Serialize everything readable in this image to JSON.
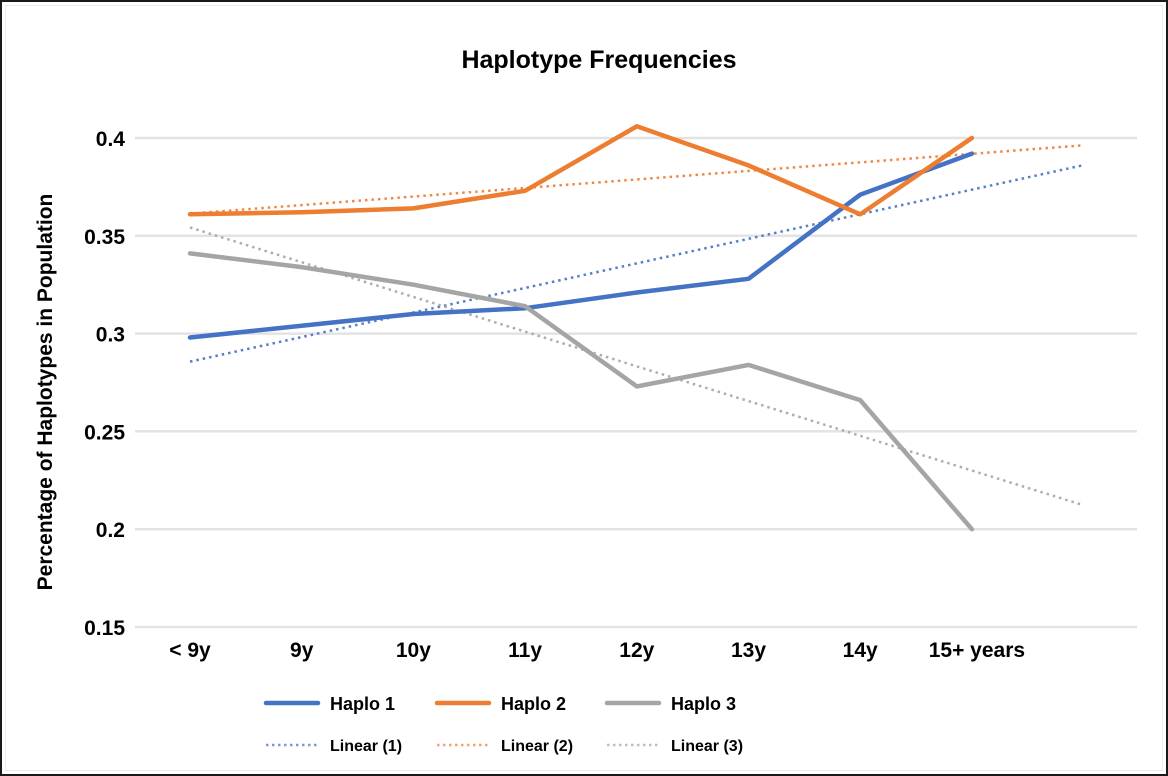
{
  "chart_data": {
    "type": "line",
    "title": "Haplotype Frequencies",
    "xlabel": "",
    "ylabel": "Percentage of Haplotypes in Population",
    "categories": [
      "< 9y",
      "9y",
      "10y",
      "11y",
      "12y",
      "13y",
      "14y",
      "15+ years"
    ],
    "ylim": [
      0.15,
      0.4
    ],
    "yticks": [
      "0.15",
      "0.2",
      "0.25",
      "0.3",
      "0.35",
      "0.4"
    ],
    "ytick_values": [
      0.15,
      0.2,
      0.25,
      0.3,
      0.35,
      0.4
    ],
    "grid": true,
    "legend_position": "bottom",
    "series": [
      {
        "name": "Haplo 1",
        "color": "#4472C4",
        "values": [
          0.298,
          0.304,
          0.31,
          0.313,
          0.321,
          0.328,
          0.371,
          0.392
        ]
      },
      {
        "name": "Haplo 2",
        "color": "#ED7D31",
        "values": [
          0.361,
          0.362,
          0.364,
          0.373,
          0.406,
          0.386,
          0.361,
          0.4
        ]
      },
      {
        "name": "Haplo 3",
        "color": "#A5A5A5",
        "values": [
          0.341,
          0.334,
          0.325,
          0.314,
          0.273,
          0.284,
          0.266,
          0.2
        ]
      }
    ],
    "trendlines": [
      {
        "name": "Linear (1)",
        "of": "Haplo 1",
        "type": "linear",
        "forecast_forward_periods": 1,
        "color": "#4472C4"
      },
      {
        "name": "Linear (2)",
        "of": "Haplo 2",
        "type": "linear",
        "forecast_forward_periods": 1,
        "color": "#ED7D31"
      },
      {
        "name": "Linear (3)",
        "of": "Haplo 3",
        "type": "linear",
        "forecast_forward_periods": 1,
        "color": "#A5A5A5"
      }
    ]
  }
}
